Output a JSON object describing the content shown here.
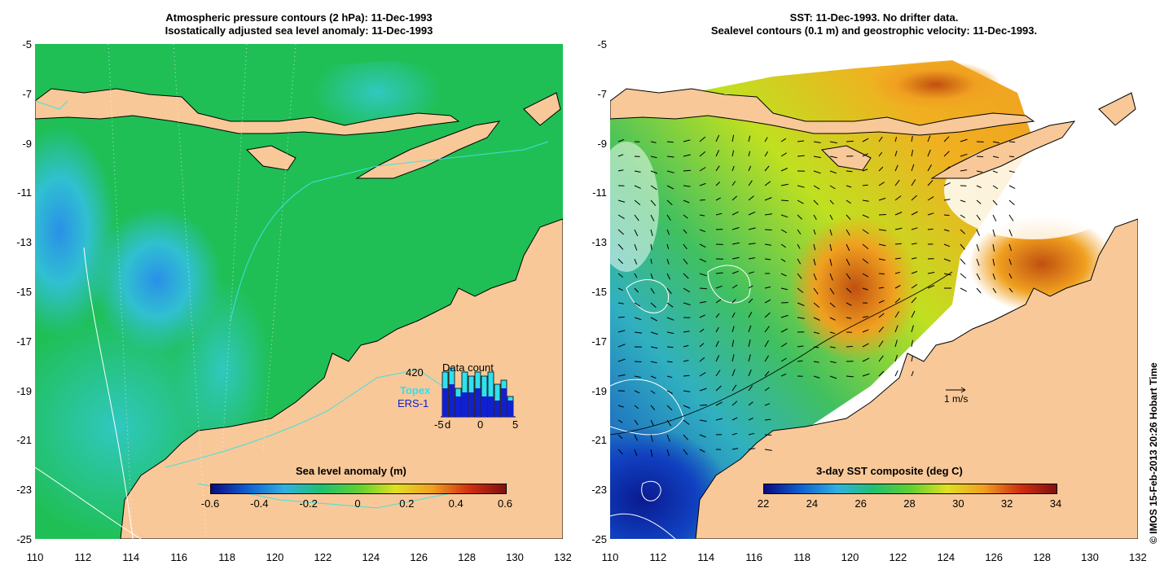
{
  "left_panel": {
    "title_line1": "Atmospheric pressure contours (2 hPa): 11-Dec-1993",
    "title_line2": "Isostatically adjusted sea level anomaly: 11-Dec-1993",
    "colorbar_title": "Sea level anomaly (m)",
    "colorbar_ticks": [
      "-0.6",
      "-0.4",
      "-0.2",
      "0",
      "0.2",
      "0.4",
      "0.6"
    ],
    "colorbar_colors": [
      "#0a0a80",
      "#1060d0",
      "#30b0e0",
      "#20c070",
      "#60d030",
      "#e0e020",
      "#f0a020",
      "#d03010",
      "#801010"
    ],
    "inset": {
      "title": "Data count",
      "max_count": "420",
      "label_topex": "Topex",
      "label_ers": "ERS-1",
      "x_ticks": [
        "-5",
        "d",
        "0",
        "5"
      ],
      "topex_color": "#30e0f0",
      "ers_color": "#1020d0",
      "topex_values": [
        0.55,
        0.6,
        0.35,
        0.55,
        0.5,
        0.55,
        0.5,
        0.55,
        0.4,
        0.45,
        0.25
      ],
      "ers_values": [
        0.35,
        0.4,
        0.25,
        0.3,
        0.3,
        0.35,
        0.25,
        0.25,
        0.2,
        0.35,
        0.2
      ]
    }
  },
  "right_panel": {
    "title_line1": "SST: 11-Dec-1993. No drifter data.",
    "title_line2": "Sealevel contours (0.1 m) and geostrophic velocity: 11-Dec-1993.",
    "velocity_scale_label": "1 m/s",
    "colorbar_title": "3-day SST composite (deg C)",
    "colorbar_ticks": [
      "22",
      "24",
      "26",
      "28",
      "30",
      "32",
      "34"
    ],
    "colorbar_colors": [
      "#0a0a80",
      "#1060d0",
      "#30b0e0",
      "#20c070",
      "#60d030",
      "#e0e020",
      "#f0a020",
      "#d03010",
      "#801010"
    ]
  },
  "y_ticks": [
    "-5",
    "-7",
    "-9",
    "-11",
    "-13",
    "-15",
    "-17",
    "-19",
    "-21",
    "-23",
    "-25"
  ],
  "x_ticks": [
    "110",
    "112",
    "114",
    "116",
    "118",
    "120",
    "122",
    "124",
    "126",
    "128",
    "130",
    "132"
  ],
  "copyright": "© IMOS 15-Feb-2013 20:26 Hobart Time",
  "colors": {
    "land": "#f8c898",
    "ocean_green": "#1fbf55",
    "ocean_cyan": "#2fd0b0",
    "ocean_blue": "#3090e0",
    "contour_cyan": "#40e0e0"
  }
}
